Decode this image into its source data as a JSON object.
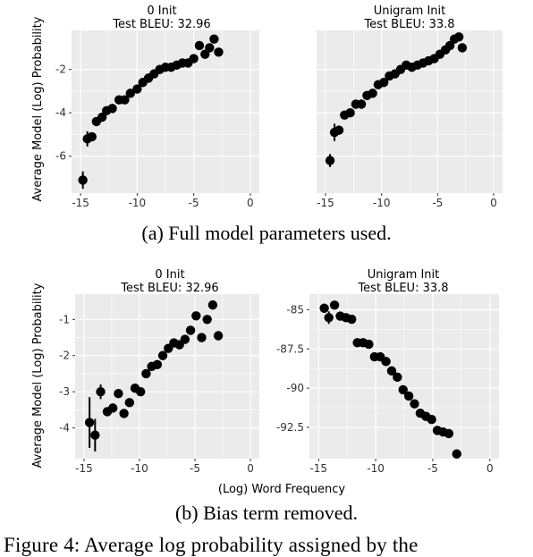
{
  "figure_caption": "Figure 4: Average log probability assigned by the",
  "rows": [
    {
      "subcaption": "(a) Full model parameters used.",
      "ylabel": "Average Model (Log) Probability",
      "xlabel": ""
    },
    {
      "subcaption": "(b) Bias term removed.",
      "ylabel": "Average Model (Log) Probability",
      "xlabel": "(Log) Word Frequency"
    }
  ],
  "colors": {
    "panel_bg": "#ebebeb",
    "grid": "#ffffff",
    "point": "#000000",
    "text": "#000000"
  },
  "chart_data": [
    {
      "type": "scatter",
      "title": "0 Init",
      "subtitle": "Test BLEU: 32.96",
      "xlim": [
        -15.8,
        0.8
      ],
      "ylim": [
        -7.7,
        -0.2
      ],
      "xticks": [
        -15,
        -10,
        -5,
        0
      ],
      "xtick_labels": [
        "-15",
        "-10",
        "-5",
        "0"
      ],
      "yticks": [
        -6,
        -4,
        -2
      ],
      "ytick_labels": [
        "-6",
        "-4",
        "-2"
      ],
      "points": [
        {
          "x": -14.8,
          "y": -7.1,
          "err": 0.4
        },
        {
          "x": -14.4,
          "y": -5.2,
          "err": 0.35
        },
        {
          "x": -14.0,
          "y": -5.1,
          "err": 0
        },
        {
          "x": -13.6,
          "y": -4.4,
          "err": 0
        },
        {
          "x": -13.1,
          "y": -4.2,
          "err": 0
        },
        {
          "x": -12.7,
          "y": -3.9,
          "err": 0
        },
        {
          "x": -12.2,
          "y": -3.8,
          "err": 0
        },
        {
          "x": -11.6,
          "y": -3.4,
          "err": 0
        },
        {
          "x": -11.1,
          "y": -3.4,
          "err": 0
        },
        {
          "x": -10.6,
          "y": -3.1,
          "err": 0
        },
        {
          "x": -10.0,
          "y": -2.9,
          "err": 0
        },
        {
          "x": -9.5,
          "y": -2.6,
          "err": 0
        },
        {
          "x": -9.0,
          "y": -2.4,
          "err": 0
        },
        {
          "x": -8.5,
          "y": -2.2,
          "err": 0
        },
        {
          "x": -8.0,
          "y": -2.0,
          "err": 0
        },
        {
          "x": -7.5,
          "y": -1.9,
          "err": 0
        },
        {
          "x": -7.0,
          "y": -1.9,
          "err": 0
        },
        {
          "x": -6.5,
          "y": -1.8,
          "err": 0
        },
        {
          "x": -6.0,
          "y": -1.7,
          "err": 0
        },
        {
          "x": -5.5,
          "y": -1.7,
          "err": 0
        },
        {
          "x": -5.0,
          "y": -1.5,
          "err": 0
        },
        {
          "x": -4.5,
          "y": -0.9,
          "err": 0
        },
        {
          "x": -4.0,
          "y": -1.3,
          "err": 0
        },
        {
          "x": -3.6,
          "y": -1.0,
          "err": 0
        },
        {
          "x": -3.2,
          "y": -0.6,
          "err": 0
        },
        {
          "x": -2.8,
          "y": -1.2,
          "err": 0
        }
      ]
    },
    {
      "type": "scatter",
      "title": "Unigram Init",
      "subtitle": "Test BLEU: 33.8",
      "xlim": [
        -15.8,
        0.8
      ],
      "ylim": [
        -7.7,
        -0.2
      ],
      "xticks": [
        -15,
        -10,
        -5,
        0
      ],
      "xtick_labels": [
        "-15",
        "-10",
        "-5",
        "0"
      ],
      "yticks": [],
      "ytick_labels": [],
      "points": [
        {
          "x": -14.6,
          "y": -6.2,
          "err": 0.3
        },
        {
          "x": -14.2,
          "y": -4.9,
          "err": 0.4
        },
        {
          "x": -13.8,
          "y": -4.8,
          "err": 0
        },
        {
          "x": -13.3,
          "y": -4.1,
          "err": 0
        },
        {
          "x": -12.8,
          "y": -4.0,
          "err": 0
        },
        {
          "x": -12.3,
          "y": -3.6,
          "err": 0
        },
        {
          "x": -11.8,
          "y": -3.6,
          "err": 0
        },
        {
          "x": -11.3,
          "y": -3.2,
          "err": 0
        },
        {
          "x": -10.8,
          "y": -3.1,
          "err": 0
        },
        {
          "x": -10.3,
          "y": -2.7,
          "err": 0
        },
        {
          "x": -9.8,
          "y": -2.6,
          "err": 0
        },
        {
          "x": -9.3,
          "y": -2.3,
          "err": 0
        },
        {
          "x": -8.8,
          "y": -2.2,
          "err": 0
        },
        {
          "x": -8.3,
          "y": -2.0,
          "err": 0
        },
        {
          "x": -7.8,
          "y": -1.8,
          "err": 0
        },
        {
          "x": -7.3,
          "y": -1.9,
          "err": 0
        },
        {
          "x": -6.8,
          "y": -1.8,
          "err": 0
        },
        {
          "x": -6.3,
          "y": -1.7,
          "err": 0
        },
        {
          "x": -5.8,
          "y": -1.6,
          "err": 0
        },
        {
          "x": -5.3,
          "y": -1.5,
          "err": 0
        },
        {
          "x": -4.8,
          "y": -1.3,
          "err": 0
        },
        {
          "x": -4.3,
          "y": -1.1,
          "err": 0
        },
        {
          "x": -3.9,
          "y": -0.9,
          "err": 0
        },
        {
          "x": -3.5,
          "y": -0.6,
          "err": 0
        },
        {
          "x": -3.1,
          "y": -0.5,
          "err": 0
        },
        {
          "x": -2.8,
          "y": -1.0,
          "err": 0
        }
      ]
    },
    {
      "type": "scatter",
      "title": "0 Init",
      "subtitle": "Test BLEU: 32.96",
      "xlim": [
        -15.8,
        0.8
      ],
      "ylim": [
        -4.85,
        -0.3
      ],
      "xticks": [
        -15,
        -10,
        -5,
        0
      ],
      "xtick_labels": [
        "-15",
        "-10",
        "-5",
        "0"
      ],
      "yticks": [
        -4,
        -3,
        -2,
        -1
      ],
      "ytick_labels": [
        "-4",
        "-3",
        "-2",
        "-1"
      ],
      "points": [
        {
          "x": -14.5,
          "y": -3.85,
          "err": 0.7
        },
        {
          "x": -14.0,
          "y": -4.2,
          "err": 0.45
        },
        {
          "x": -13.5,
          "y": -3.0,
          "err": 0.2
        },
        {
          "x": -12.9,
          "y": -3.55,
          "err": 0
        },
        {
          "x": -12.4,
          "y": -3.45,
          "err": 0
        },
        {
          "x": -11.9,
          "y": -3.05,
          "err": 0
        },
        {
          "x": -11.4,
          "y": -3.6,
          "err": 0
        },
        {
          "x": -10.9,
          "y": -3.3,
          "err": 0
        },
        {
          "x": -10.4,
          "y": -2.9,
          "err": 0
        },
        {
          "x": -9.9,
          "y": -3.0,
          "err": 0
        },
        {
          "x": -9.4,
          "y": -2.5,
          "err": 0
        },
        {
          "x": -8.9,
          "y": -2.3,
          "err": 0
        },
        {
          "x": -8.4,
          "y": -2.25,
          "err": 0
        },
        {
          "x": -7.9,
          "y": -2.0,
          "err": 0
        },
        {
          "x": -7.4,
          "y": -1.8,
          "err": 0
        },
        {
          "x": -6.9,
          "y": -1.65,
          "err": 0
        },
        {
          "x": -6.4,
          "y": -1.7,
          "err": 0
        },
        {
          "x": -5.9,
          "y": -1.55,
          "err": 0
        },
        {
          "x": -5.4,
          "y": -1.3,
          "err": 0
        },
        {
          "x": -4.9,
          "y": -0.9,
          "err": 0
        },
        {
          "x": -4.4,
          "y": -1.5,
          "err": 0
        },
        {
          "x": -3.9,
          "y": -1.0,
          "err": 0
        },
        {
          "x": -3.4,
          "y": -0.6,
          "err": 0
        },
        {
          "x": -2.9,
          "y": -1.45,
          "err": 0
        }
      ]
    },
    {
      "type": "scatter",
      "title": "Unigram Init",
      "subtitle": "Test BLEU: 33.8",
      "xlim": [
        -15.8,
        0.8
      ],
      "ylim": [
        -94.5,
        -84.0
      ],
      "xticks": [
        -15,
        -10,
        -5,
        0
      ],
      "xtick_labels": [
        "-15",
        "-10",
        "-5",
        "0"
      ],
      "yticks": [
        -92.5,
        -90,
        -87.5,
        -85
      ],
      "ytick_labels": [
        "-92.5",
        "-90",
        "-87.5",
        "-85"
      ],
      "points": [
        {
          "x": -14.5,
          "y": -84.9,
          "err": 0.3
        },
        {
          "x": -14.1,
          "y": -85.5,
          "err": 0.4
        },
        {
          "x": -13.6,
          "y": -84.7,
          "err": 0
        },
        {
          "x": -13.1,
          "y": -85.4,
          "err": 0
        },
        {
          "x": -12.6,
          "y": -85.5,
          "err": 0
        },
        {
          "x": -12.1,
          "y": -85.6,
          "err": 0
        },
        {
          "x": -11.6,
          "y": -87.1,
          "err": 0
        },
        {
          "x": -11.1,
          "y": -87.1,
          "err": 0
        },
        {
          "x": -10.6,
          "y": -87.2,
          "err": 0
        },
        {
          "x": -10.1,
          "y": -88.0,
          "err": 0
        },
        {
          "x": -9.6,
          "y": -88.0,
          "err": 0
        },
        {
          "x": -9.1,
          "y": -88.3,
          "err": 0
        },
        {
          "x": -8.6,
          "y": -88.9,
          "err": 0
        },
        {
          "x": -8.1,
          "y": -89.3,
          "err": 0
        },
        {
          "x": -7.6,
          "y": -90.1,
          "err": 0
        },
        {
          "x": -7.1,
          "y": -90.5,
          "err": 0
        },
        {
          "x": -6.6,
          "y": -91.0,
          "err": 0
        },
        {
          "x": -6.1,
          "y": -91.6,
          "err": 0
        },
        {
          "x": -5.6,
          "y": -91.8,
          "err": 0
        },
        {
          "x": -5.1,
          "y": -92.0,
          "err": 0
        },
        {
          "x": -4.6,
          "y": -92.7,
          "err": 0
        },
        {
          "x": -4.1,
          "y": -92.8,
          "err": 0
        },
        {
          "x": -3.6,
          "y": -92.9,
          "err": 0
        },
        {
          "x": -2.9,
          "y": -94.2,
          "err": 0
        }
      ]
    }
  ]
}
